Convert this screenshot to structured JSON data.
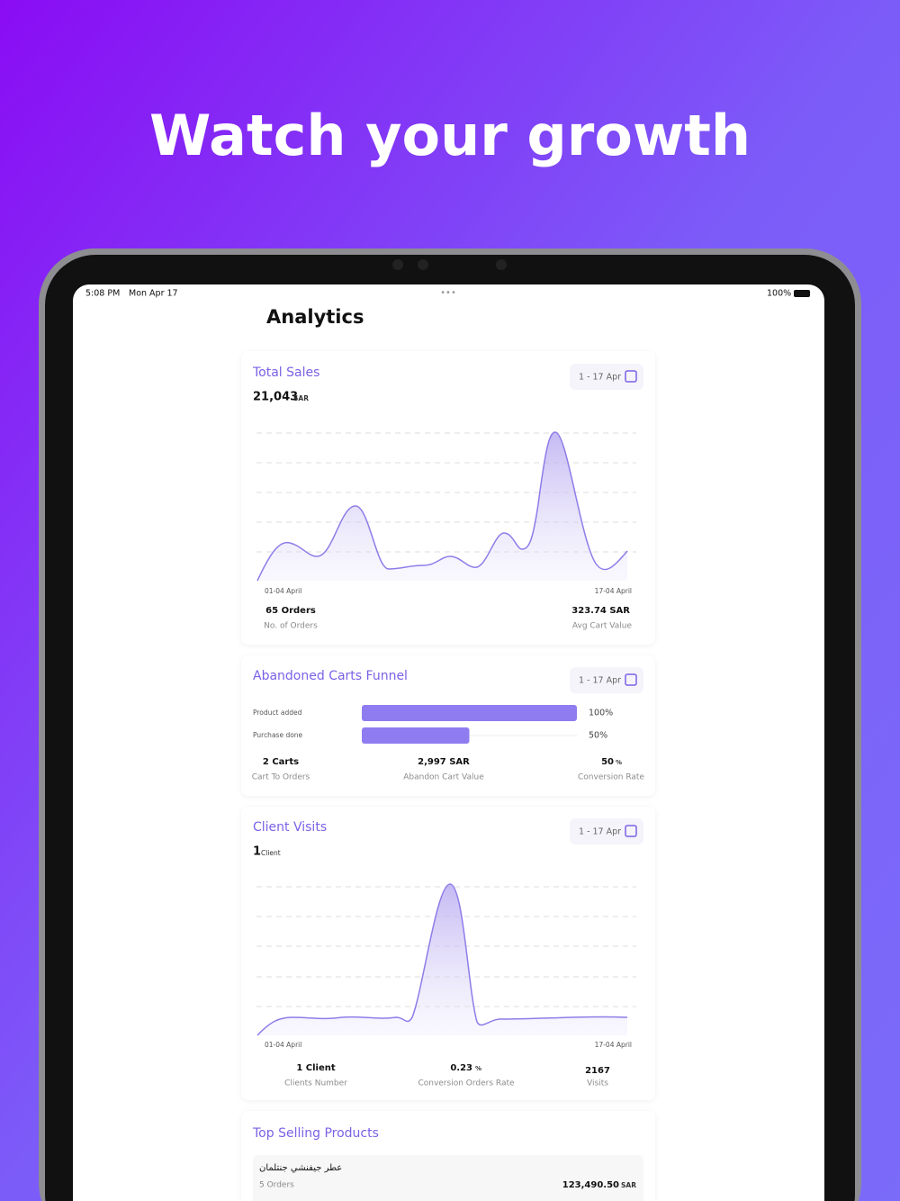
{
  "header": {
    "title": "Watch your growth"
  },
  "status_bar": {
    "time": "5:08 PM",
    "date": "Mon Apr 17",
    "battery": "100%"
  },
  "page": {
    "title": "Analytics"
  },
  "total_sales": {
    "title": "Total Sales",
    "date_range": "1 - 17 Apr",
    "amount": "21,043",
    "unit": "SAR",
    "x_start": "01-04 April",
    "x_end": "17-04 April",
    "stats": [
      {
        "value": "65 Orders",
        "label": "No. of Orders"
      },
      {
        "value": "323.74 SAR",
        "label": "Avg Cart Value"
      }
    ]
  },
  "abandoned_carts": {
    "title": "Abandoned Carts Funnel",
    "date_range": "1 - 17 Apr",
    "steps": [
      {
        "label": "Product added",
        "value": 100,
        "value_label": "100%"
      },
      {
        "label": "Purchase done",
        "value": 50,
        "value_label": "50%"
      }
    ],
    "stats": [
      {
        "value": "2 Carts",
        "label": "Cart To Orders"
      },
      {
        "value": "2,997 SAR",
        "label": "Abandon Cart Value"
      },
      {
        "value": "50",
        "unit": "%",
        "label": "Conversion Rate"
      }
    ]
  },
  "client_visits": {
    "title": "Client Visits",
    "date_range": "1 - 17 Apr",
    "amount": "1",
    "unit": "Client",
    "x_start": "01-04 April",
    "x_end": "17-04 April",
    "stats": [
      {
        "value": "1 Client",
        "label": "Clients Number"
      },
      {
        "value": "0.23",
        "unit": "%",
        "label": "Conversion Orders Rate"
      },
      {
        "value": "2167",
        "label": "Visits"
      }
    ]
  },
  "top_products": {
    "title": "Top Selling Products",
    "items": [
      {
        "name": "عطر جيفنشي جنتلمان",
        "orders": "5 Orders",
        "amount": "123,490.50",
        "unit": "SAR"
      }
    ]
  }
}
